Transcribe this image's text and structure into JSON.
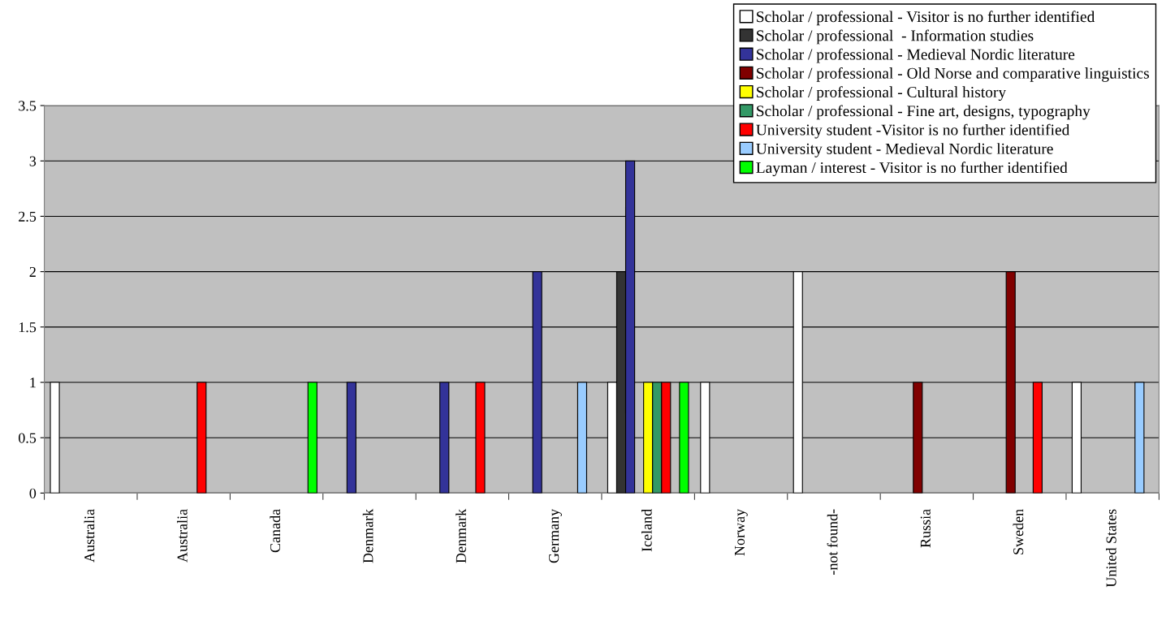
{
  "chart_data": {
    "type": "bar",
    "categories": [
      "Australia",
      "Australia",
      "Canada",
      "Denmark",
      "Denmark",
      "Germany",
      "Iceland",
      "Norway",
      "-not found-",
      "Russia",
      "Sweden",
      "United States"
    ],
    "series": [
      {
        "name": "Scholar / professional - Visitor is no further identified",
        "color": "#ffffff",
        "values": [
          1,
          0,
          0,
          0,
          0,
          0,
          1,
          1,
          2,
          0,
          0,
          1
        ]
      },
      {
        "name": "Scholar / professional  - Information studies",
        "color": "#333333",
        "values": [
          0,
          0,
          0,
          0,
          0,
          0,
          2,
          0,
          0,
          0,
          0,
          0
        ]
      },
      {
        "name": "Scholar / professional - Medieval Nordic literature",
        "color": "#333399",
        "values": [
          0,
          0,
          0,
          1,
          1,
          2,
          3,
          0,
          0,
          0,
          0,
          0
        ]
      },
      {
        "name": "Scholar / professional - Old Norse and comparative linguistics",
        "color": "#800000",
        "values": [
          0,
          0,
          0,
          0,
          0,
          0,
          0,
          0,
          0,
          1,
          2,
          0
        ]
      },
      {
        "name": "Scholar / professional - Cultural history",
        "color": "#ffff00",
        "values": [
          0,
          0,
          0,
          0,
          0,
          0,
          1,
          0,
          0,
          0,
          0,
          0
        ]
      },
      {
        "name": "Scholar / professional - Fine art, designs, typography",
        "color": "#339966",
        "values": [
          0,
          0,
          0,
          0,
          0,
          0,
          1,
          0,
          0,
          0,
          0,
          0
        ]
      },
      {
        "name": "University student -Visitor is no further identified",
        "color": "#ff0000",
        "values": [
          0,
          1,
          0,
          0,
          1,
          0,
          1,
          0,
          0,
          0,
          1,
          0
        ]
      },
      {
        "name": "University student - Medieval Nordic literature",
        "color": "#99ccff",
        "values": [
          0,
          0,
          0,
          0,
          0,
          1,
          0,
          0,
          0,
          0,
          0,
          1
        ]
      },
      {
        "name": "Layman / interest - Visitor is no further identified",
        "color": "#00ff00",
        "values": [
          0,
          0,
          1,
          0,
          0,
          0,
          1,
          0,
          0,
          0,
          0,
          0
        ]
      }
    ],
    "ylim": [
      0,
      3.5
    ],
    "yticks": [
      0,
      0.5,
      1,
      1.5,
      2,
      2.5,
      3,
      3.5
    ],
    "grid": "y",
    "legend": "top right"
  }
}
